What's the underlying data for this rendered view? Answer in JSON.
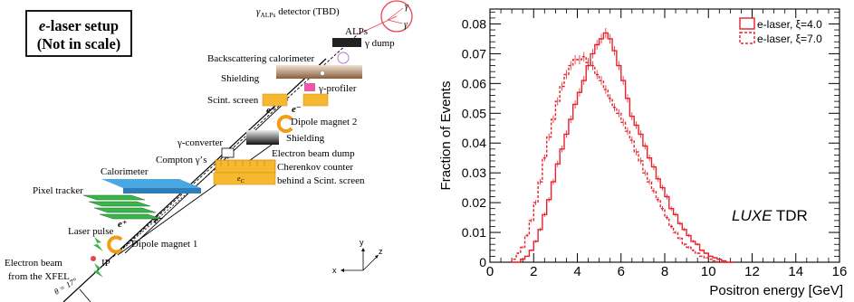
{
  "setup": {
    "title_line1_italic": "e",
    "title_line1_rest": "-laser setup",
    "title_line2": "(Not in scale)",
    "labels": {
      "detector_main": "γ",
      "detector_sub": "ALPs",
      "detector_rest": " detector (TBD)",
      "alps": "ALPs",
      "gamma_dump": "γ dump",
      "backscattering_calorimeter": "Backscattering calorimeter",
      "shielding_top": "Shielding",
      "gamma_profiler": "γ-profiler",
      "scint_screen": "Scint. screen",
      "dipole_magnet_2": "Dipole magnet 2",
      "gamma_converter": "γ-converter",
      "shielding_mid": "Shielding",
      "compton_gammas": "Compton γ’s",
      "electron_beam_dump": "Electron beam dump",
      "calorimeter": "Calorimeter",
      "cherenkov_counter": "Cherenkov counter",
      "behind_scint_screen": "behind a Scint. screen",
      "pixel_tracker": "Pixel tracker",
      "laser_pulse": "Laser pulse",
      "dipole_magnet_1": "Dipole magnet 1",
      "electron_beam": "Electron beam",
      "from_xfel": "from the XFEL",
      "ip": "IP",
      "theta": "θ = 17°",
      "e_plus": "e⁺",
      "e_minus": "e⁻",
      "e_c": "e",
      "e_c_sub": "C",
      "gamma_symbol": "γ",
      "axis_x": "x",
      "axis_y": "y",
      "axis_z": "z"
    },
    "colors": {
      "laser": "#3ab54a",
      "calorimeter": "#4aa8e0",
      "magnet": "#f39c12",
      "screen": "#f5b82e",
      "profiler": "#e85aa8",
      "detector": "#e8434b"
    }
  },
  "chart_data": {
    "type": "line",
    "xlabel": "Positron energy [GeV]",
    "ylabel": "Fraction of Events",
    "xlim": [
      0,
      16
    ],
    "ylim": [
      0,
      0.085
    ],
    "x_ticks": [
      "0",
      "2",
      "4",
      "6",
      "8",
      "10",
      "12",
      "14",
      "16"
    ],
    "y_ticks": [
      "0",
      "0.01",
      "0.02",
      "0.03",
      "0.04",
      "0.05",
      "0.06",
      "0.07",
      "0.08"
    ],
    "annotation_italic": "LUXE",
    "annotation_rest": " TDR",
    "legend_placement": "top-right",
    "bin_edges_start": 1.0,
    "bin_width": 0.2,
    "series": [
      {
        "name": "e-laser, ξ=4.0",
        "color": "#e8202a",
        "style": "solid",
        "values": [
          0.0,
          0.0,
          0.001,
          0.002,
          0.004,
          0.007,
          0.011,
          0.016,
          0.021,
          0.027,
          0.033,
          0.038,
          0.043,
          0.048,
          0.053,
          0.057,
          0.061,
          0.066,
          0.07,
          0.073,
          0.075,
          0.077,
          0.075,
          0.071,
          0.066,
          0.061,
          0.055,
          0.049,
          0.046,
          0.043,
          0.039,
          0.035,
          0.032,
          0.028,
          0.025,
          0.022,
          0.018,
          0.016,
          0.013,
          0.011,
          0.009,
          0.007,
          0.006,
          0.004,
          0.003,
          0.002,
          0.0015,
          0.001,
          0.0005,
          0.0,
          0.0
        ]
      },
      {
        "name": "e-laser, ξ=7.0",
        "color": "#e8202a",
        "style": "dashed",
        "values": [
          0.001,
          0.003,
          0.005,
          0.009,
          0.014,
          0.02,
          0.027,
          0.035,
          0.042,
          0.048,
          0.054,
          0.059,
          0.063,
          0.066,
          0.068,
          0.068,
          0.069,
          0.067,
          0.066,
          0.063,
          0.061,
          0.058,
          0.055,
          0.052,
          0.05,
          0.047,
          0.044,
          0.041,
          0.037,
          0.034,
          0.03,
          0.027,
          0.024,
          0.021,
          0.018,
          0.015,
          0.012,
          0.01,
          0.008,
          0.006,
          0.005,
          0.004,
          0.003,
          0.002,
          0.0015,
          0.001,
          0.0005,
          0.0,
          0.0,
          0.0,
          0.0
        ]
      }
    ]
  }
}
